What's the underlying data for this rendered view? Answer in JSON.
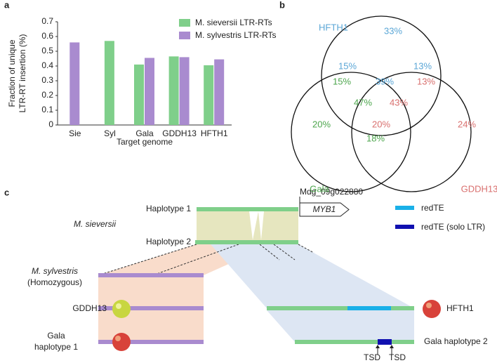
{
  "panel_labels": [
    "a",
    "b",
    "c"
  ],
  "chart_data": {
    "type": "bar",
    "ylabel": [
      "Fraction of unique",
      "LTR-RT insertion (%)"
    ],
    "xlabel": "Target genome",
    "categories": [
      "Sie",
      "Syl",
      "Gala",
      "GDDH13",
      "HFTH1"
    ],
    "series": [
      {
        "name": "M. sieversii LTR-RTs",
        "color": "#7fcf8a",
        "values": [
          null,
          0.57,
          0.41,
          0.465,
          0.405
        ]
      },
      {
        "name": "M. sylvestris LTR-RTs",
        "color": "#a98bcf",
        "values": [
          0.56,
          null,
          0.455,
          0.46,
          0.445
        ]
      }
    ],
    "ylim": [
      0,
      0.7
    ],
    "yticks": [
      0,
      0.1,
      0.2,
      0.3,
      0.4,
      0.5,
      0.6,
      0.7
    ]
  },
  "venn": {
    "sets": [
      {
        "label": "HFTH1",
        "color": "#5aa6d6"
      },
      {
        "label": "Gala",
        "color": "#4ea64e"
      },
      {
        "label": "GDDH13",
        "color": "#d9706f"
      }
    ],
    "regions": [
      {
        "text": "33%",
        "set": 0
      },
      {
        "text": "15%",
        "set": 0
      },
      {
        "text": "13%",
        "set": 0
      },
      {
        "text": "15%",
        "set": 1
      },
      {
        "text": "39%",
        "set": 0
      },
      {
        "text": "13%",
        "set": 2
      },
      {
        "text": "47%",
        "set": 1
      },
      {
        "text": "43%",
        "set": 2
      },
      {
        "text": "20%",
        "set": 1
      },
      {
        "text": "20%",
        "set": 2
      },
      {
        "text": "24%",
        "set": 2
      },
      {
        "text": "18%",
        "set": 1
      }
    ]
  },
  "diagram": {
    "gene_id": "Mdg_09g022880",
    "gene": "MYB1",
    "haplotype1": "Haplotype 1",
    "haplotype2": "Haplotype 2",
    "species1": "M. sieversii",
    "species2": "M. sylvestris",
    "species2_note": "(Homozygous)",
    "gddh13": "GDDH13",
    "gala1": [
      "Gala",
      "haplotype 1"
    ],
    "hfth1": "HFTH1",
    "gala2": "Gala haplotype 2",
    "legend": [
      "redTE",
      "redTE (solo LTR)"
    ],
    "tsd": [
      "TSD",
      "TSD"
    ]
  }
}
